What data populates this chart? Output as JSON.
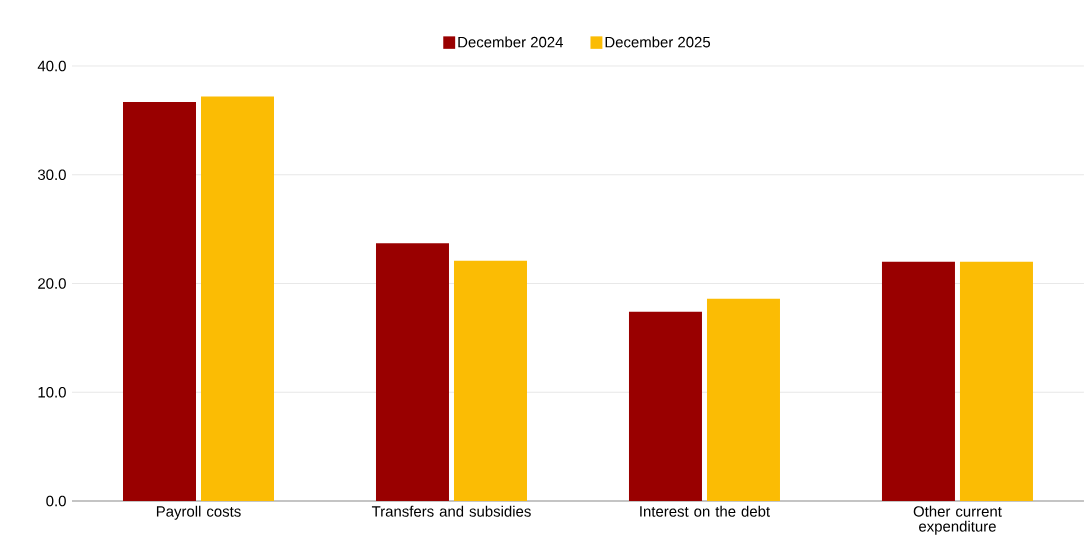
{
  "chart_data": {
    "type": "bar",
    "categories": [
      "Payroll costs",
      "Transfers and subsidies",
      "Interest on the debt",
      "Other current expenditure"
    ],
    "series": [
      {
        "name": "December 2024",
        "color": "#990000",
        "values": [
          36.7,
          23.7,
          17.4,
          22.0
        ]
      },
      {
        "name": "December 2025",
        "color": "#fbbc04",
        "values": [
          37.2,
          22.1,
          18.6,
          22.0
        ]
      }
    ],
    "ylim": [
      0,
      40
    ],
    "yticks": [
      {
        "value": 0,
        "label": "0.0"
      },
      {
        "value": 10,
        "label": "10.0"
      },
      {
        "value": 20,
        "label": "20.0"
      },
      {
        "value": 30,
        "label": "30.0"
      },
      {
        "value": 40,
        "label": "40.0"
      }
    ],
    "grid": "y",
    "legend": "top"
  }
}
